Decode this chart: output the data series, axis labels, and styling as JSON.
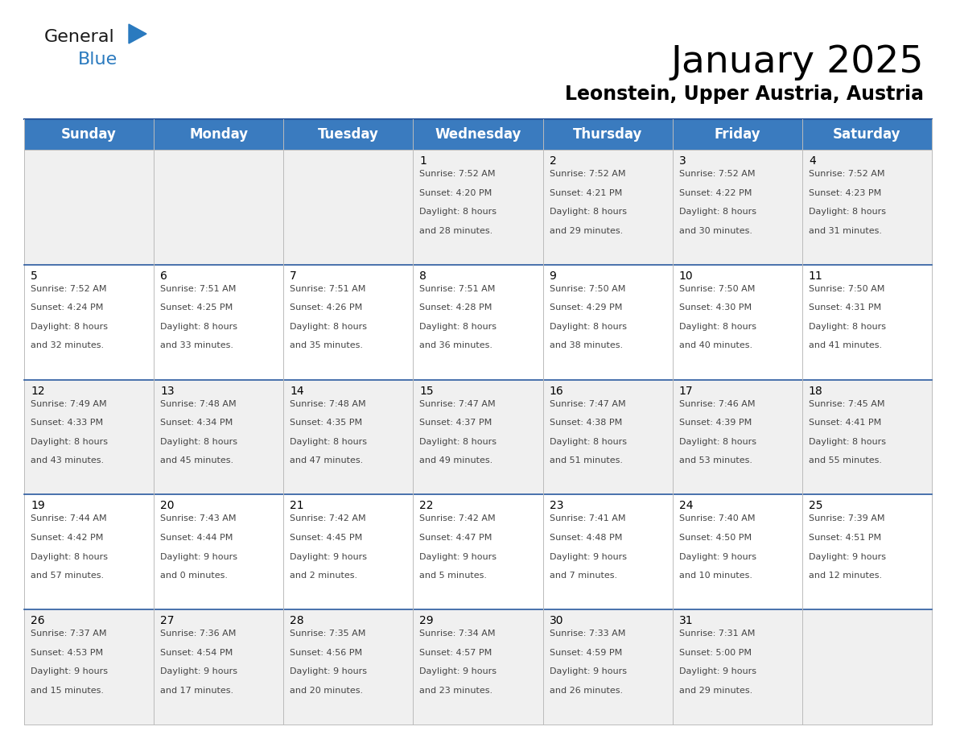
{
  "title": "January 2025",
  "subtitle": "Leonstein, Upper Austria, Austria",
  "header_color": "#3a7bbf",
  "header_text_color": "#ffffff",
  "cell_bg_even": "#f0f0f0",
  "cell_bg_odd": "#ffffff",
  "day_names": [
    "Sunday",
    "Monday",
    "Tuesday",
    "Wednesday",
    "Thursday",
    "Friday",
    "Saturday"
  ],
  "days": [
    {
      "day": 1,
      "col": 3,
      "row": 0,
      "sunrise": "7:52 AM",
      "sunset": "4:20 PM",
      "daylight": "8 hours and 28 minutes"
    },
    {
      "day": 2,
      "col": 4,
      "row": 0,
      "sunrise": "7:52 AM",
      "sunset": "4:21 PM",
      "daylight": "8 hours and 29 minutes"
    },
    {
      "day": 3,
      "col": 5,
      "row": 0,
      "sunrise": "7:52 AM",
      "sunset": "4:22 PM",
      "daylight": "8 hours and 30 minutes"
    },
    {
      "day": 4,
      "col": 6,
      "row": 0,
      "sunrise": "7:52 AM",
      "sunset": "4:23 PM",
      "daylight": "8 hours and 31 minutes"
    },
    {
      "day": 5,
      "col": 0,
      "row": 1,
      "sunrise": "7:52 AM",
      "sunset": "4:24 PM",
      "daylight": "8 hours and 32 minutes"
    },
    {
      "day": 6,
      "col": 1,
      "row": 1,
      "sunrise": "7:51 AM",
      "sunset": "4:25 PM",
      "daylight": "8 hours and 33 minutes"
    },
    {
      "day": 7,
      "col": 2,
      "row": 1,
      "sunrise": "7:51 AM",
      "sunset": "4:26 PM",
      "daylight": "8 hours and 35 minutes"
    },
    {
      "day": 8,
      "col": 3,
      "row": 1,
      "sunrise": "7:51 AM",
      "sunset": "4:28 PM",
      "daylight": "8 hours and 36 minutes"
    },
    {
      "day": 9,
      "col": 4,
      "row": 1,
      "sunrise": "7:50 AM",
      "sunset": "4:29 PM",
      "daylight": "8 hours and 38 minutes"
    },
    {
      "day": 10,
      "col": 5,
      "row": 1,
      "sunrise": "7:50 AM",
      "sunset": "4:30 PM",
      "daylight": "8 hours and 40 minutes"
    },
    {
      "day": 11,
      "col": 6,
      "row": 1,
      "sunrise": "7:50 AM",
      "sunset": "4:31 PM",
      "daylight": "8 hours and 41 minutes"
    },
    {
      "day": 12,
      "col": 0,
      "row": 2,
      "sunrise": "7:49 AM",
      "sunset": "4:33 PM",
      "daylight": "8 hours and 43 minutes"
    },
    {
      "day": 13,
      "col": 1,
      "row": 2,
      "sunrise": "7:48 AM",
      "sunset": "4:34 PM",
      "daylight": "8 hours and 45 minutes"
    },
    {
      "day": 14,
      "col": 2,
      "row": 2,
      "sunrise": "7:48 AM",
      "sunset": "4:35 PM",
      "daylight": "8 hours and 47 minutes"
    },
    {
      "day": 15,
      "col": 3,
      "row": 2,
      "sunrise": "7:47 AM",
      "sunset": "4:37 PM",
      "daylight": "8 hours and 49 minutes"
    },
    {
      "day": 16,
      "col": 4,
      "row": 2,
      "sunrise": "7:47 AM",
      "sunset": "4:38 PM",
      "daylight": "8 hours and 51 minutes"
    },
    {
      "day": 17,
      "col": 5,
      "row": 2,
      "sunrise": "7:46 AM",
      "sunset": "4:39 PM",
      "daylight": "8 hours and 53 minutes"
    },
    {
      "day": 18,
      "col": 6,
      "row": 2,
      "sunrise": "7:45 AM",
      "sunset": "4:41 PM",
      "daylight": "8 hours and 55 minutes"
    },
    {
      "day": 19,
      "col": 0,
      "row": 3,
      "sunrise": "7:44 AM",
      "sunset": "4:42 PM",
      "daylight": "8 hours and 57 minutes"
    },
    {
      "day": 20,
      "col": 1,
      "row": 3,
      "sunrise": "7:43 AM",
      "sunset": "4:44 PM",
      "daylight": "9 hours and 0 minutes"
    },
    {
      "day": 21,
      "col": 2,
      "row": 3,
      "sunrise": "7:42 AM",
      "sunset": "4:45 PM",
      "daylight": "9 hours and 2 minutes"
    },
    {
      "day": 22,
      "col": 3,
      "row": 3,
      "sunrise": "7:42 AM",
      "sunset": "4:47 PM",
      "daylight": "9 hours and 5 minutes"
    },
    {
      "day": 23,
      "col": 4,
      "row": 3,
      "sunrise": "7:41 AM",
      "sunset": "4:48 PM",
      "daylight": "9 hours and 7 minutes"
    },
    {
      "day": 24,
      "col": 5,
      "row": 3,
      "sunrise": "7:40 AM",
      "sunset": "4:50 PM",
      "daylight": "9 hours and 10 minutes"
    },
    {
      "day": 25,
      "col": 6,
      "row": 3,
      "sunrise": "7:39 AM",
      "sunset": "4:51 PM",
      "daylight": "9 hours and 12 minutes"
    },
    {
      "day": 26,
      "col": 0,
      "row": 4,
      "sunrise": "7:37 AM",
      "sunset": "4:53 PM",
      "daylight": "9 hours and 15 minutes"
    },
    {
      "day": 27,
      "col": 1,
      "row": 4,
      "sunrise": "7:36 AM",
      "sunset": "4:54 PM",
      "daylight": "9 hours and 17 minutes"
    },
    {
      "day": 28,
      "col": 2,
      "row": 4,
      "sunrise": "7:35 AM",
      "sunset": "4:56 PM",
      "daylight": "9 hours and 20 minutes"
    },
    {
      "day": 29,
      "col": 3,
      "row": 4,
      "sunrise": "7:34 AM",
      "sunset": "4:57 PM",
      "daylight": "9 hours and 23 minutes"
    },
    {
      "day": 30,
      "col": 4,
      "row": 4,
      "sunrise": "7:33 AM",
      "sunset": "4:59 PM",
      "daylight": "9 hours and 26 minutes"
    },
    {
      "day": 31,
      "col": 5,
      "row": 4,
      "sunrise": "7:31 AM",
      "sunset": "5:00 PM",
      "daylight": "9 hours and 29 minutes"
    }
  ],
  "num_rows": 5,
  "num_cols": 7,
  "bg_color": "#ffffff",
  "title_fontsize": 34,
  "subtitle_fontsize": 17,
  "header_fontsize": 12,
  "day_num_fontsize": 10,
  "cell_fontsize": 8,
  "line_color": "#bbbbbb",
  "logo_general_color": "#1a1a1a",
  "logo_blue_color": "#2a7abf",
  "border_color": "#2a5a9f"
}
